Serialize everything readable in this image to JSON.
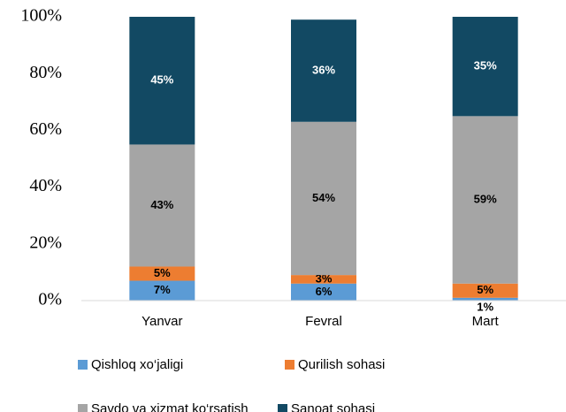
{
  "chart_data": {
    "type": "stacked_bar",
    "categories": [
      "Yanvar",
      "Fevral",
      "Mart"
    ],
    "series": [
      {
        "name": "Qishloq xo‘jaligi",
        "color": "#5b9bd5",
        "values": [
          7,
          6,
          1
        ],
        "value_labels": [
          "7%",
          "6%",
          "1%"
        ]
      },
      {
        "name": "Qurilish sohasi",
        "color": "#ed7d31",
        "values": [
          5,
          3,
          5
        ],
        "value_labels": [
          "5%",
          "3%",
          "5%"
        ]
      },
      {
        "name": "Savdo va xizmat ko‘rsatish",
        "color": "#a5a5a5",
        "values": [
          43,
          54,
          59
        ],
        "value_labels": [
          "43%",
          "54%",
          "59%"
        ]
      },
      {
        "name": "Sanoat sohasi",
        "color": "#124963",
        "values": [
          45,
          36,
          35
        ],
        "value_labels": [
          "45%",
          "36%",
          "35%"
        ]
      }
    ],
    "ylim": [
      0,
      100
    ],
    "yticks": [
      {
        "value": 0,
        "label": "0%"
      },
      {
        "value": 20,
        "label": "20%"
      },
      {
        "value": 40,
        "label": "40%"
      },
      {
        "value": 60,
        "label": "60%"
      },
      {
        "value": 80,
        "label": "80%"
      },
      {
        "value": 100,
        "label": "100%"
      }
    ],
    "grid": false
  }
}
